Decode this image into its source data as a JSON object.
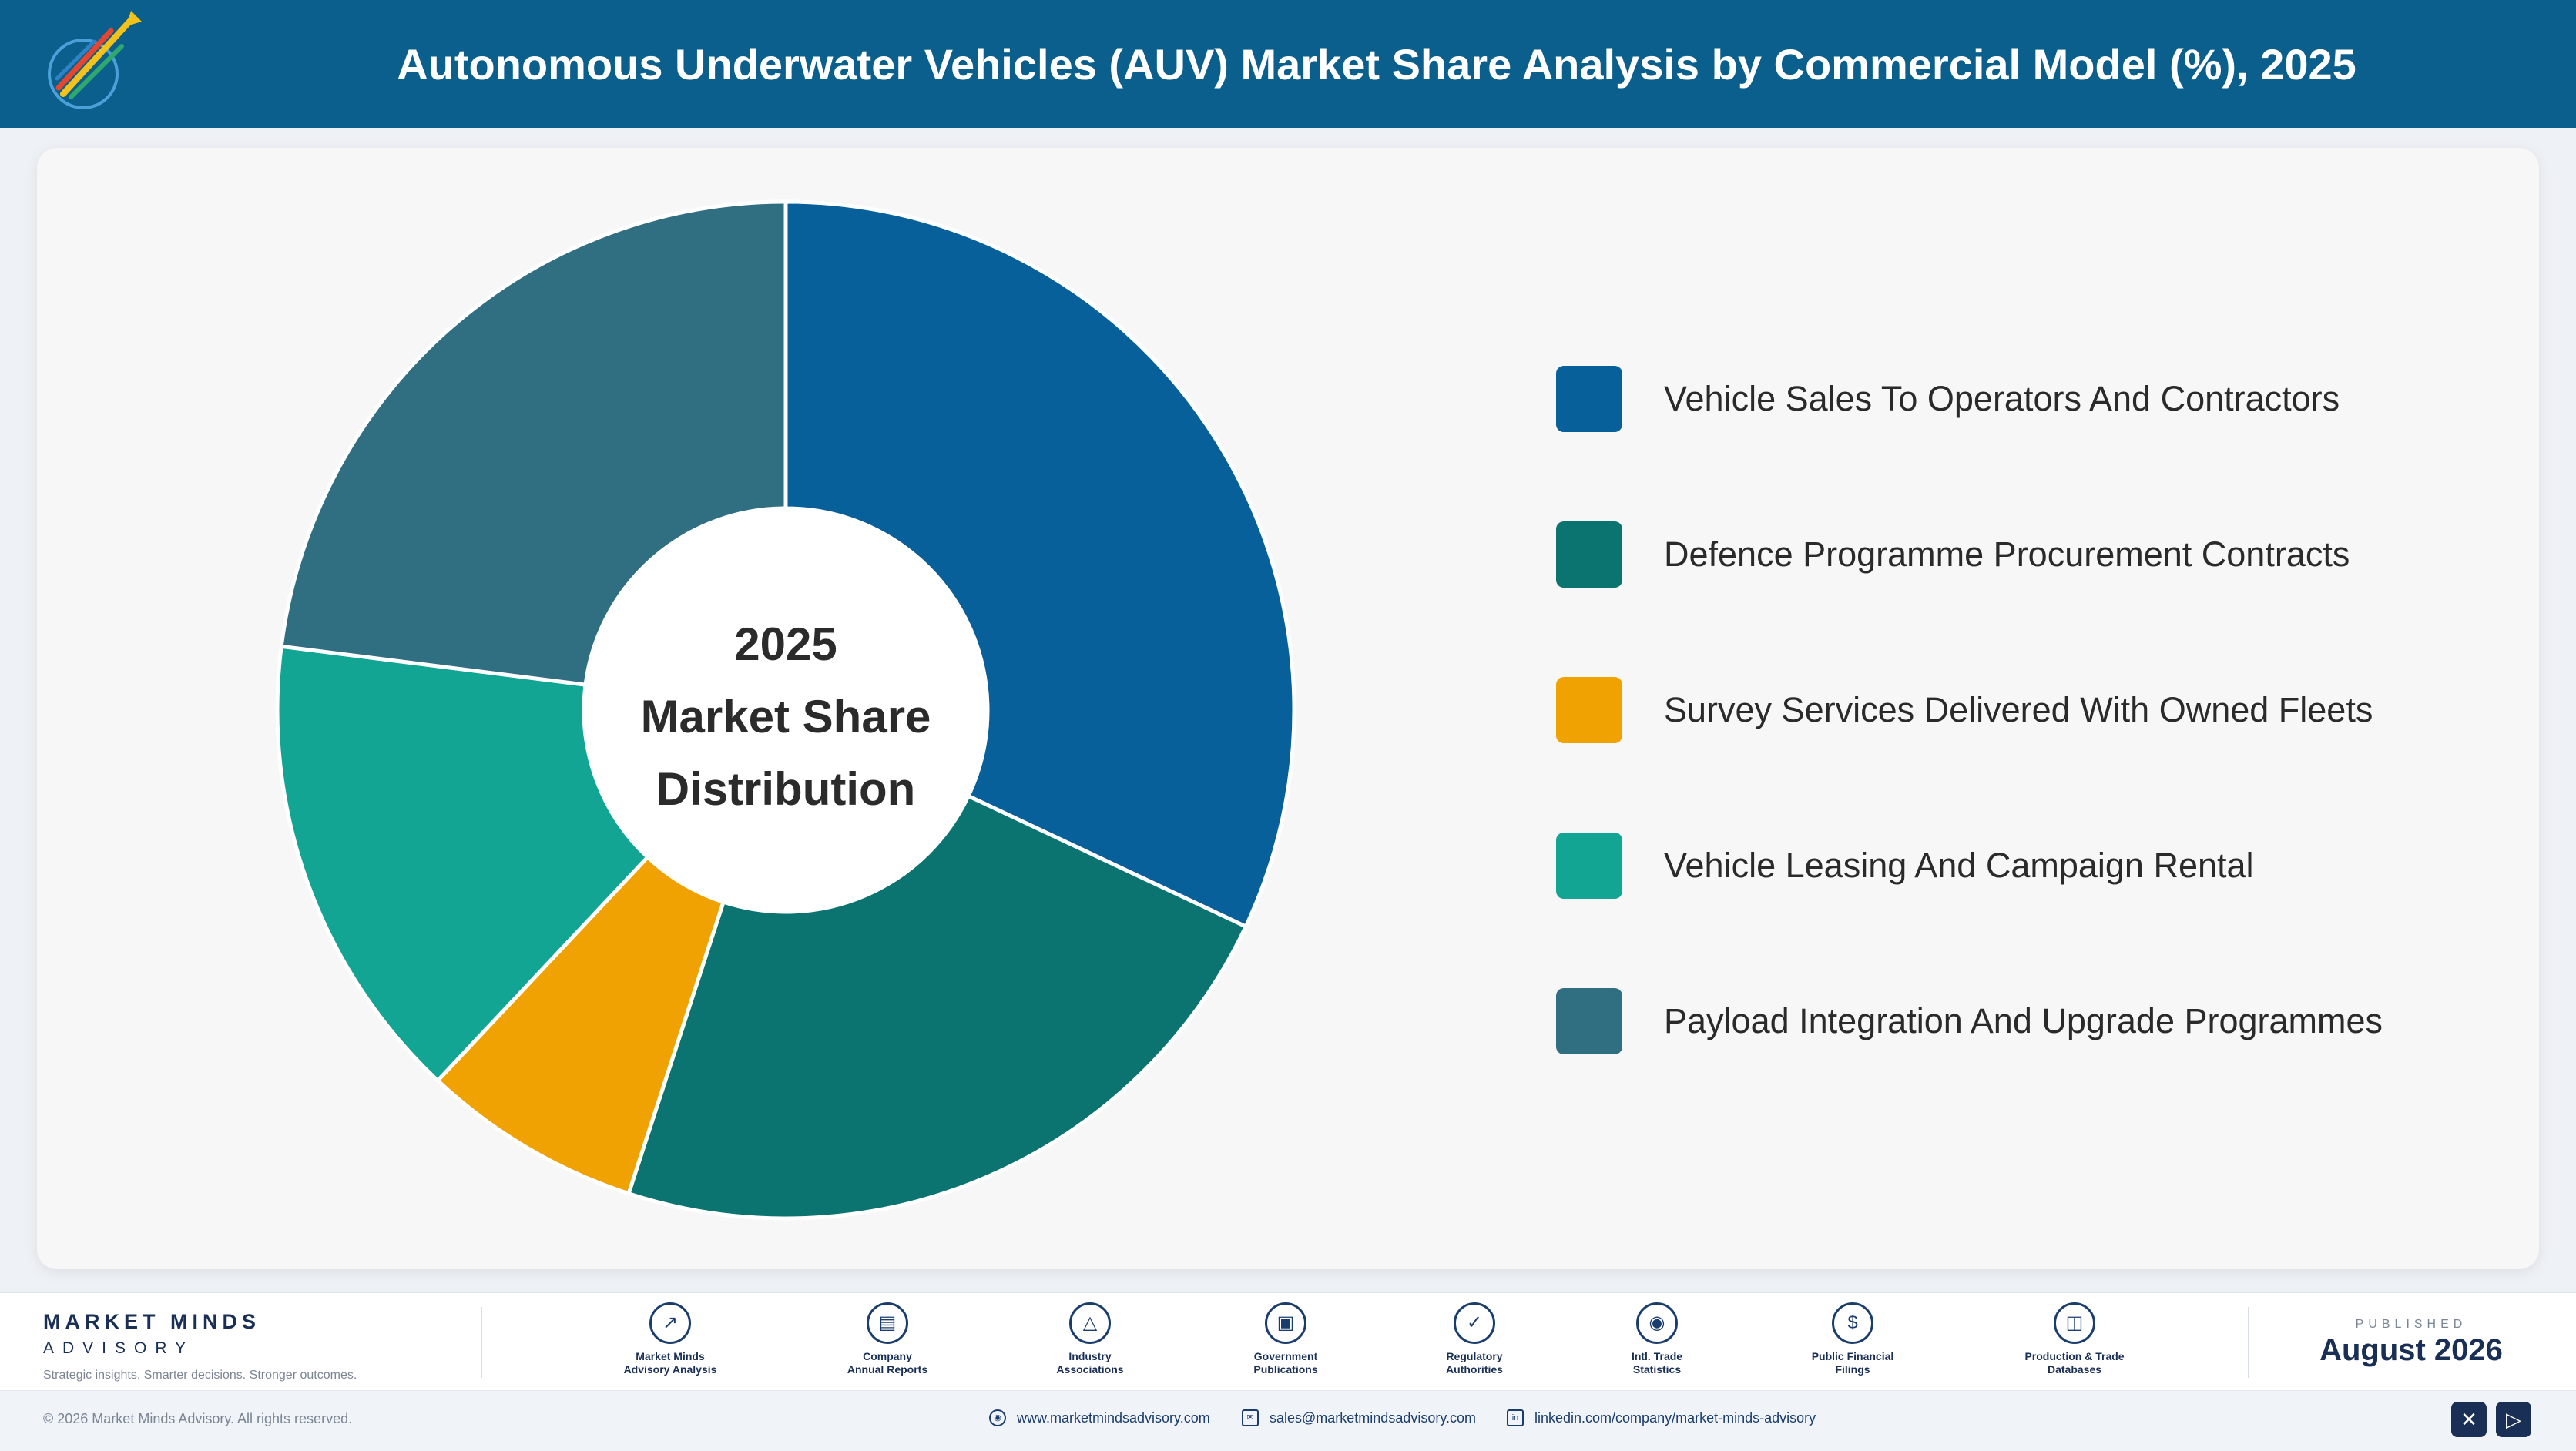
{
  "header": {
    "title": "Autonomous Underwater Vehicles (AUV) Market Share Analysis by Commercial Model (%), 2025",
    "logo_icon": "market-minds-logo-icon"
  },
  "chart_data": {
    "type": "pie",
    "variant": "donut",
    "title": "Autonomous Underwater Vehicles (AUV) Market Share Analysis by Commercial Model (%), 2025",
    "center_label": [
      "2025",
      "Market Share",
      "Distribution"
    ],
    "categories": [
      "Vehicle Sales To Operators And Contractors",
      "Defence Programme Procurement Contracts",
      "Survey Services Delivered With Owned Fleets",
      "Vehicle Leasing And Campaign Rental",
      "Payload Integration And Upgrade Programmes"
    ],
    "values": [
      32,
      23,
      7,
      15,
      23
    ],
    "colors": [
      "#07609a",
      "#0b7470",
      "#f0a202",
      "#13a594",
      "#306e82"
    ],
    "legend_position": "right",
    "start_angle_deg": 0,
    "direction": "clockwise"
  },
  "footer": {
    "brand_name": "MARKET MINDS",
    "brand_sub": "ADVISORY",
    "tagline": "Strategic insights. Smarter decisions. Stronger outcomes.",
    "sources": [
      {
        "line1": "Market Minds",
        "line2": "Advisory Analysis",
        "icon": "chart-line-icon"
      },
      {
        "line1": "Company",
        "line2": "Annual Reports",
        "icon": "document-icon"
      },
      {
        "line1": "Industry",
        "line2": "Associations",
        "icon": "network-icon"
      },
      {
        "line1": "Government",
        "line2": "Publications",
        "icon": "government-building-icon"
      },
      {
        "line1": "Regulatory",
        "line2": "Authorities",
        "icon": "shield-check-icon"
      },
      {
        "line1": "Intl. Trade",
        "line2": "Statistics",
        "icon": "globe-icon"
      },
      {
        "line1": "Public Financial",
        "line2": "Filings",
        "icon": "dollar-circle-icon"
      },
      {
        "line1": "Production & Trade",
        "line2": "Databases",
        "icon": "database-icon"
      }
    ],
    "published_label": "PUBLISHED",
    "published_date": "August 2026",
    "copyright": "© 2026 Market Minds Advisory. All rights reserved.",
    "website": "www.marketmindsadvisory.com",
    "email": "sales@marketmindsadvisory.com",
    "linkedin": "linkedin.com/company/market-minds-advisory"
  }
}
